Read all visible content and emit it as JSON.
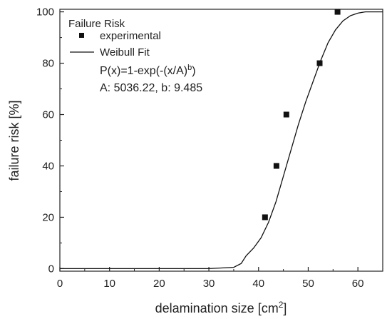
{
  "chart_data": {
    "type": "scatter",
    "legend": {
      "title": "Failure Risk",
      "entries": [
        "experimental",
        "Weibull Fit"
      ],
      "placement": "top-left",
      "formula_main": "P(x)=1-exp(-(x/A)",
      "formula_sup": "b",
      "formula_close": ")",
      "params": "A: 5036.22, b: 9.485"
    },
    "xlabel_main": "delamination size [cm",
    "xlabel_sup": "2",
    "xlabel_close": "]",
    "ylabel": "failure risk [%]",
    "xlim": [
      0,
      65
    ],
    "ylim": [
      -1,
      101
    ],
    "xticks": [
      "0",
      "10",
      "20",
      "30",
      "40",
      "50",
      "60"
    ],
    "yticks": [
      "0",
      "20",
      "40",
      "60",
      "80",
      "100"
    ],
    "grid": false,
    "series": [
      {
        "name": "experimental",
        "kind": "points",
        "x": [
          41.3,
          43.6,
          45.6,
          52.3,
          55.9
        ],
        "y": [
          20,
          40,
          60,
          80,
          100
        ]
      },
      {
        "name": "Weibull Fit",
        "kind": "line",
        "x": [
          0,
          30,
          35,
          36.5,
          37.5,
          39,
          40.5,
          42,
          43.5,
          45,
          46.5,
          48,
          49.5,
          51,
          52.5,
          54,
          55.5,
          57,
          58.5,
          60,
          61.5,
          63,
          65
        ],
        "y": [
          0,
          0,
          0.5,
          2,
          5,
          8,
          12,
          18,
          26,
          36,
          46,
          56,
          65,
          73,
          81,
          88,
          93,
          96.5,
          98.5,
          99.5,
          100,
          100,
          100
        ]
      }
    ]
  }
}
